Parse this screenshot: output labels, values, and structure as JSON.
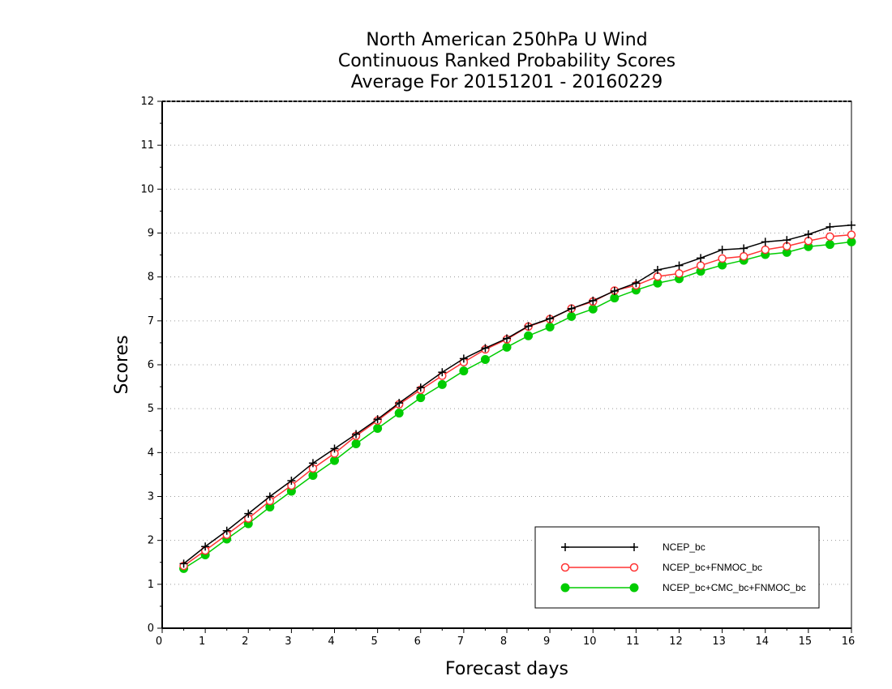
{
  "chart_data": {
    "type": "line",
    "title": [
      "North American 250hPa U Wind",
      "Continuous Ranked Probability Scores",
      "Average For 20151201 - 20160229"
    ],
    "xlabel": "Forecast days",
    "ylabel": "Scores",
    "xlim": [
      0,
      16
    ],
    "ylim": [
      0,
      12
    ],
    "xticks": [
      "0",
      "1",
      "2",
      "3",
      "4",
      "5",
      "6",
      "7",
      "8",
      "9",
      "10",
      "11",
      "12",
      "13",
      "14",
      "15",
      "16"
    ],
    "yticks": [
      "0",
      "1",
      "2",
      "3",
      "4",
      "5",
      "6",
      "7",
      "8",
      "9",
      "10",
      "11",
      "12"
    ],
    "grid": "horizontal dotted",
    "legend_position": "bottom-right",
    "x": [
      0.5,
      1,
      1.5,
      2,
      2.5,
      3,
      3.5,
      4,
      4.5,
      5,
      5.5,
      6,
      6.5,
      7,
      7.5,
      8,
      8.5,
      9,
      9.5,
      10,
      10.5,
      11,
      11.5,
      12,
      12.5,
      13,
      13.5,
      14,
      14.5,
      15,
      15.5,
      16
    ],
    "series": [
      {
        "name": "NCEP_bc",
        "color": "#000000",
        "marker": "plus",
        "values": [
          1.47,
          1.86,
          2.22,
          2.61,
          3.0,
          3.36,
          3.76,
          4.09,
          4.42,
          4.76,
          5.13,
          5.48,
          5.83,
          6.14,
          6.38,
          6.6,
          6.88,
          7.05,
          7.28,
          7.46,
          7.68,
          7.86,
          8.16,
          8.26,
          8.43,
          8.62,
          8.65,
          8.8,
          8.84,
          8.97,
          9.14,
          9.18
        ]
      },
      {
        "name": "NCEP_bc+FNMOC_bc",
        "color": "#ff3333",
        "marker": "open-circle",
        "values": [
          1.42,
          1.77,
          2.13,
          2.5,
          2.9,
          3.25,
          3.64,
          3.98,
          4.38,
          4.73,
          5.1,
          5.43,
          5.75,
          6.06,
          6.35,
          6.58,
          6.87,
          7.04,
          7.28,
          7.44,
          7.69,
          7.81,
          8.01,
          8.08,
          8.26,
          8.42,
          8.47,
          8.62,
          8.7,
          8.82,
          8.92,
          8.96
        ]
      },
      {
        "name": "NCEP_bc+CMC_bc+FNMOC_bc",
        "color": "#00cc00",
        "marker": "filled-circle",
        "values": [
          1.36,
          1.67,
          2.03,
          2.38,
          2.76,
          3.12,
          3.48,
          3.82,
          4.2,
          4.55,
          4.9,
          5.25,
          5.55,
          5.86,
          6.12,
          6.4,
          6.66,
          6.86,
          7.1,
          7.27,
          7.52,
          7.7,
          7.86,
          7.96,
          8.13,
          8.27,
          8.38,
          8.51,
          8.56,
          8.69,
          8.74,
          8.8
        ]
      }
    ]
  }
}
